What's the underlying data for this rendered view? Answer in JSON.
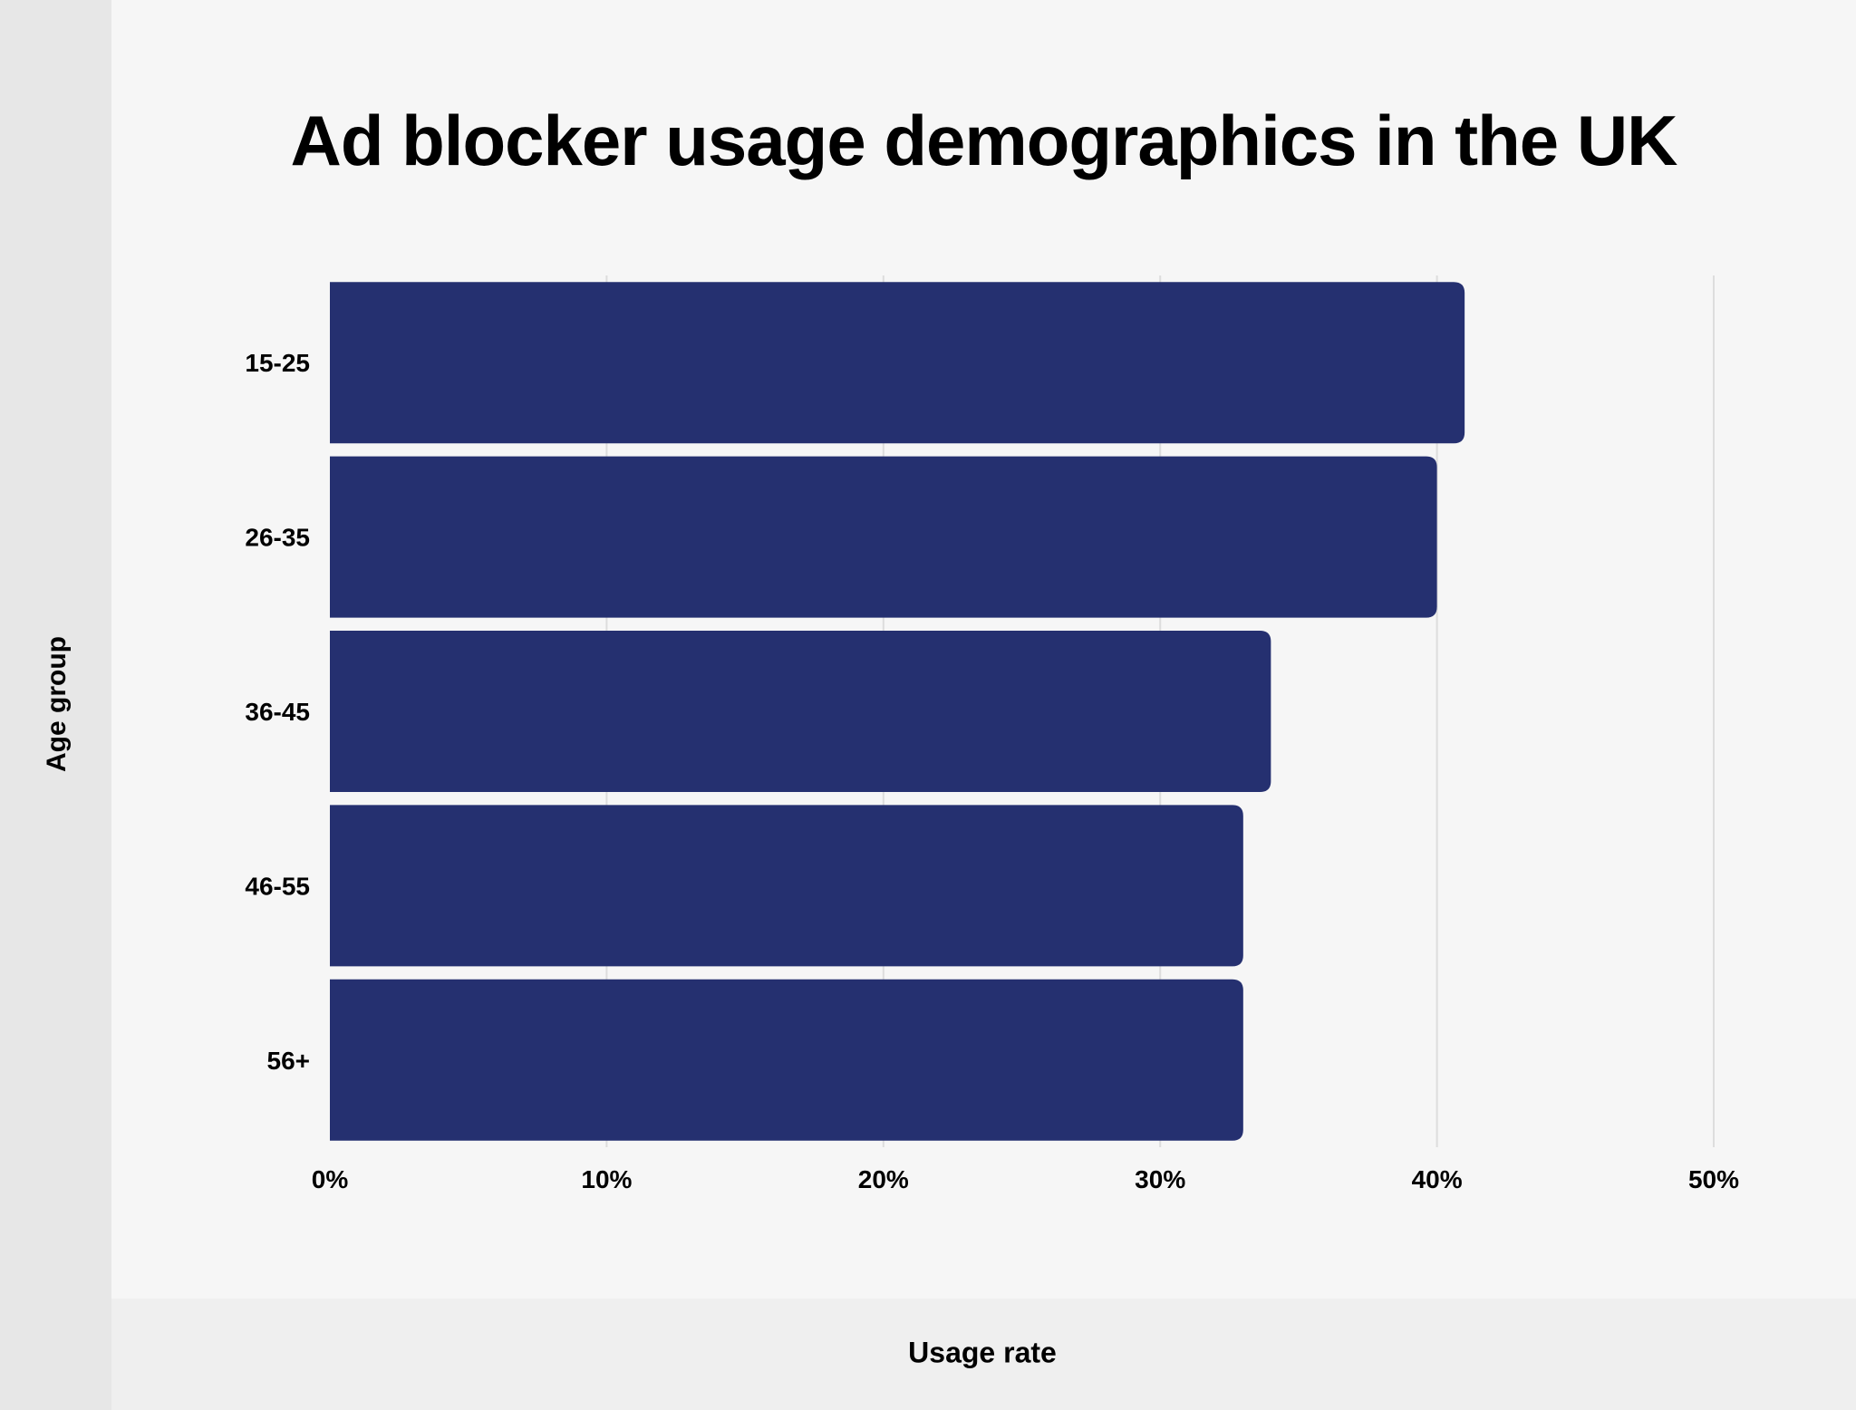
{
  "chart_data": {
    "type": "bar",
    "orientation": "horizontal",
    "title": "Ad blocker usage demographics in the UK",
    "xlabel": "Usage rate",
    "ylabel": "Age group",
    "categories": [
      "15-25",
      "26-35",
      "36-45",
      "46-55",
      "56+"
    ],
    "values": [
      41,
      40,
      34,
      33,
      33
    ],
    "xlim": [
      0,
      50
    ],
    "xticks": [
      0,
      10,
      20,
      30,
      40,
      50
    ],
    "xtick_labels": [
      "0%",
      "10%",
      "20%",
      "30%",
      "40%",
      "50%"
    ],
    "grid": "vertical",
    "bar_color": "#253070",
    "grid_color": "#dddddd"
  }
}
